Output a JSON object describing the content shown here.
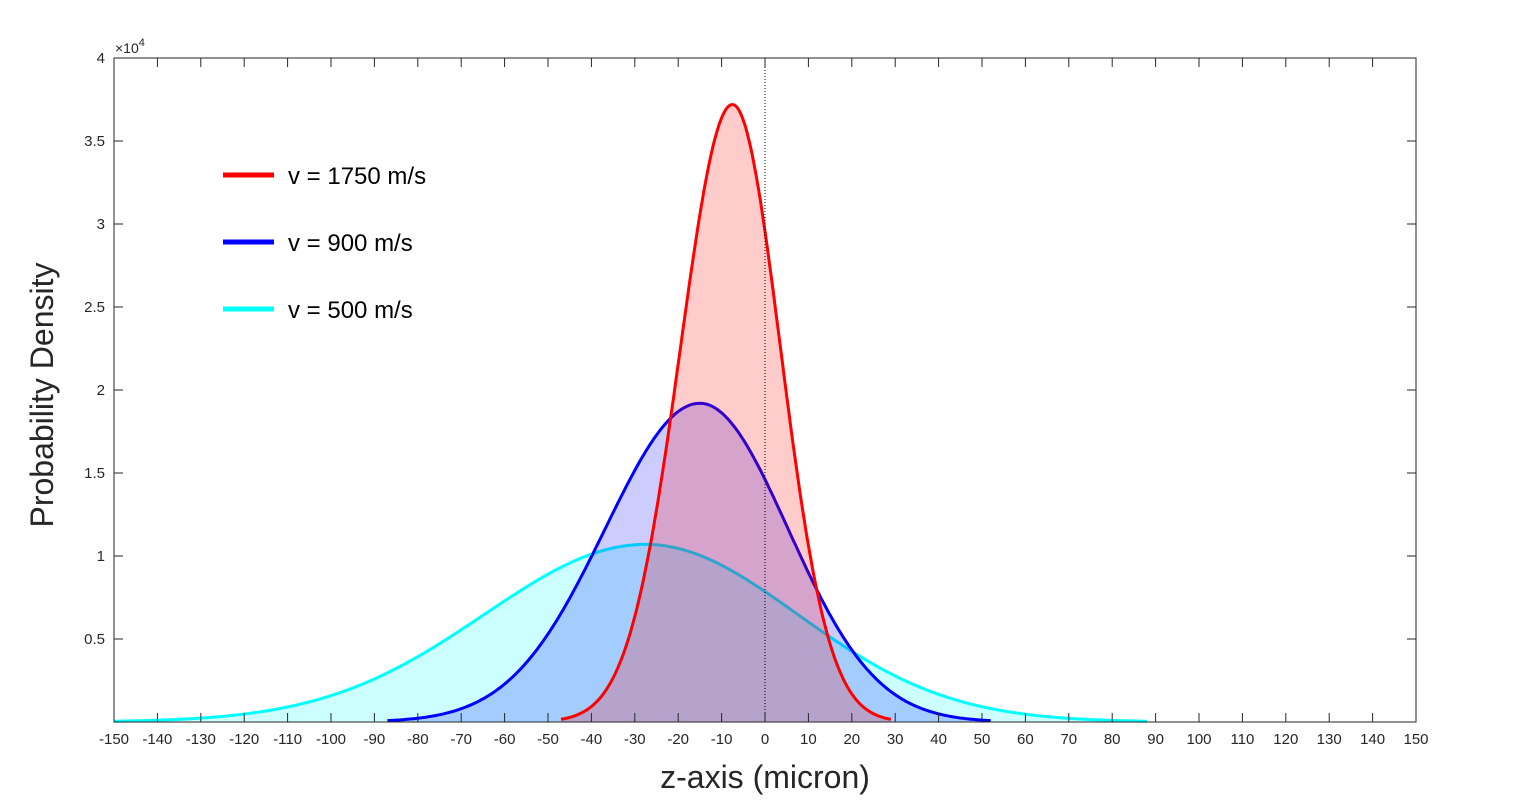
{
  "chart_data": {
    "type": "area",
    "xlabel": "z-axis (micron)",
    "ylabel": "Probability Density",
    "xlim": [
      -150,
      150
    ],
    "ylim": [
      0,
      40000
    ],
    "y_exponent_label": "×10",
    "y_exponent_power": "4",
    "x_ticks": [
      -150,
      -140,
      -130,
      -120,
      -110,
      -100,
      -90,
      -80,
      -70,
      -60,
      -50,
      -40,
      -30,
      -20,
      -10,
      0,
      10,
      20,
      30,
      40,
      50,
      60,
      70,
      80,
      90,
      100,
      110,
      120,
      130,
      140,
      150
    ],
    "x_tick_labels": [
      "-150",
      "-140",
      "-130",
      "-120",
      "-110",
      "-100",
      "-90",
      "-80",
      "-70",
      "-60",
      "-50",
      "-40",
      "-30",
      "-20",
      "-10",
      "0",
      "10",
      "20",
      "30",
      "40",
      "50",
      "60",
      "70",
      "80",
      "90",
      "100",
      "110",
      "120",
      "130",
      "140",
      "150"
    ],
    "y_ticks": [
      5000,
      10000,
      15000,
      20000,
      25000,
      30000,
      35000,
      40000
    ],
    "y_tick_labels": [
      "0.5",
      "1",
      "1.5",
      "2",
      "2.5",
      "3",
      "3.5",
      "4"
    ],
    "vertical_reference_line_x": 0,
    "series": [
      {
        "name": "v = 500 m/s",
        "color": "#00ffff",
        "fill": "#00ffff",
        "fill_opacity": 0.2,
        "mean": -27.5,
        "peak": 10700,
        "x_range": [
          -150,
          88
        ]
      },
      {
        "name": "v = 900 m/s",
        "color": "#0000ff",
        "fill": "#0000ff",
        "fill_opacity": 0.2,
        "mean": -15.0,
        "peak": 19200,
        "x_range": [
          -87,
          52
        ]
      },
      {
        "name": "v = 1750 m/s",
        "color": "#ff0000",
        "fill": "#ff0000",
        "fill_opacity": 0.2,
        "mean": -7.5,
        "peak": 37200,
        "x_range": [
          -47,
          29
        ]
      }
    ],
    "legend": [
      {
        "label": "v = 1750 m/s",
        "color": "#ff0000"
      },
      {
        "label": "v = 900 m/s",
        "color": "#0000ff"
      },
      {
        "label": "v = 500 m/s",
        "color": "#00ffff"
      }
    ],
    "legend_position": "top-left"
  }
}
